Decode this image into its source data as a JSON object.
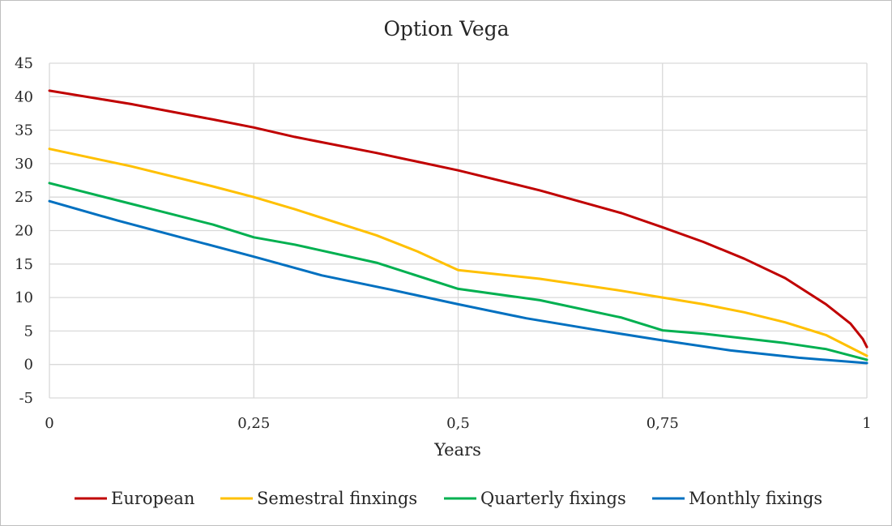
{
  "chart_data": {
    "type": "line",
    "title": "Option Vega",
    "xlabel": "Years",
    "ylabel": "",
    "xlim": [
      0,
      1
    ],
    "ylim": [
      -5,
      45
    ],
    "x_ticks": [
      0,
      0.25,
      0.5,
      0.75,
      1
    ],
    "x_tick_labels": [
      "0",
      "0,25",
      "0,5",
      "0,75",
      "1"
    ],
    "y_ticks": [
      -5,
      0,
      5,
      10,
      15,
      20,
      25,
      30,
      35,
      40,
      45
    ],
    "y_tick_labels": [
      "-5",
      "0",
      "5",
      "10",
      "15",
      "20",
      "25",
      "30",
      "35",
      "40",
      "45"
    ],
    "grid": "major gridlines on both axes",
    "legend_position": "bottom",
    "series": [
      {
        "name": "European",
        "color": "#c00000",
        "x": [
          0,
          0.1,
          0.2,
          0.25,
          0.3,
          0.4,
          0.5,
          0.6,
          0.7,
          0.75,
          0.8,
          0.85,
          0.9,
          0.95,
          0.98,
          0.995,
          1
        ],
        "y": [
          40.9,
          38.9,
          36.6,
          35.4,
          34.0,
          31.6,
          29.0,
          26.0,
          22.6,
          20.5,
          18.3,
          15.8,
          12.9,
          9.0,
          6.1,
          3.8,
          2.6
        ]
      },
      {
        "name": "Semestral finxings",
        "color": "#ffc000",
        "x": [
          0,
          0.1,
          0.2,
          0.25,
          0.3,
          0.4,
          0.45,
          0.5,
          0.6,
          0.7,
          0.75,
          0.8,
          0.85,
          0.9,
          0.95,
          1
        ],
        "y": [
          32.2,
          29.6,
          26.6,
          25.0,
          23.2,
          19.3,
          16.9,
          14.1,
          12.8,
          11.0,
          10.0,
          9.0,
          7.8,
          6.3,
          4.4,
          1.3
        ]
      },
      {
        "name": "Quarterly fixings",
        "color": "#00b050",
        "x": [
          0,
          0.1,
          0.2,
          0.25,
          0.3,
          0.4,
          0.5,
          0.6,
          0.7,
          0.75,
          0.8,
          0.9,
          0.95,
          1
        ],
        "y": [
          27.1,
          24.0,
          20.9,
          19.0,
          17.9,
          15.2,
          11.3,
          9.6,
          7.0,
          5.1,
          4.6,
          3.2,
          2.3,
          0.7
        ]
      },
      {
        "name": "Monthly fixings",
        "color": "#0070c0",
        "x": [
          0,
          0.0833,
          0.1667,
          0.25,
          0.3333,
          0.4167,
          0.5,
          0.5833,
          0.6667,
          0.75,
          0.8333,
          0.9167,
          1
        ],
        "y": [
          24.4,
          21.5,
          18.8,
          16.1,
          13.3,
          11.2,
          9.0,
          6.9,
          5.2,
          3.6,
          2.1,
          1.0,
          0.2
        ]
      }
    ]
  }
}
